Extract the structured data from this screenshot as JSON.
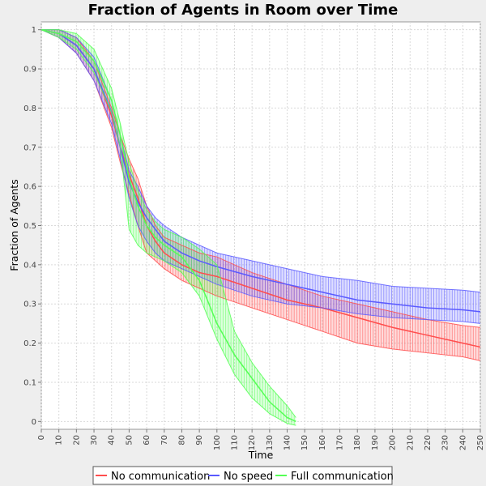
{
  "chart_data": {
    "type": "line",
    "title": "Fraction of Agents in Room over Time",
    "xlabel": "Time",
    "ylabel": "Fraction of Agents",
    "xlim": [
      0,
      250
    ],
    "ylim": [
      -0.02,
      1.02
    ],
    "grid": true,
    "legend_position": "bottom",
    "x_ticks": [
      0,
      10,
      20,
      30,
      40,
      50,
      60,
      70,
      80,
      90,
      100,
      110,
      120,
      130,
      140,
      150,
      160,
      170,
      180,
      190,
      200,
      210,
      220,
      230,
      240,
      250
    ],
    "y_ticks": [
      0,
      0.1,
      0.2,
      0.3,
      0.4,
      0.5,
      0.6,
      0.7,
      0.8,
      0.9,
      1
    ],
    "y_tick_labels": [
      "0",
      "0.1",
      "0.2",
      "0.3",
      "0.4",
      "0.5",
      "0.6",
      "0.7",
      "0.8",
      "0.9",
      "1"
    ],
    "series": [
      {
        "name": "No communication",
        "color": "#ff4d4d",
        "mean": {
          "x": [
            0,
            10,
            20,
            30,
            40,
            45,
            50,
            55,
            60,
            65,
            70,
            80,
            90,
            100,
            120,
            140,
            160,
            180,
            200,
            220,
            240,
            250
          ],
          "y": [
            1,
            0.99,
            0.96,
            0.9,
            0.78,
            0.7,
            0.63,
            0.57,
            0.5,
            0.46,
            0.43,
            0.4,
            0.38,
            0.37,
            0.34,
            0.31,
            0.29,
            0.265,
            0.24,
            0.22,
            0.2,
            0.19
          ]
        },
        "upper": {
          "x": [
            0,
            10,
            20,
            30,
            40,
            45,
            50,
            55,
            60,
            65,
            70,
            80,
            90,
            100,
            120,
            140,
            160,
            180,
            200,
            220,
            240,
            250
          ],
          "y": [
            1,
            1,
            0.98,
            0.92,
            0.8,
            0.73,
            0.67,
            0.62,
            0.55,
            0.5,
            0.47,
            0.45,
            0.43,
            0.42,
            0.38,
            0.35,
            0.32,
            0.3,
            0.28,
            0.26,
            0.245,
            0.24
          ]
        },
        "lower": {
          "x": [
            0,
            10,
            20,
            30,
            40,
            45,
            50,
            55,
            60,
            65,
            70,
            80,
            90,
            100,
            120,
            140,
            160,
            180,
            200,
            220,
            240,
            250
          ],
          "y": [
            1,
            0.98,
            0.94,
            0.87,
            0.75,
            0.66,
            0.58,
            0.5,
            0.43,
            0.41,
            0.39,
            0.36,
            0.34,
            0.32,
            0.29,
            0.26,
            0.23,
            0.2,
            0.185,
            0.175,
            0.165,
            0.155
          ]
        }
      },
      {
        "name": "No speed",
        "color": "#5a5aff",
        "mean": {
          "x": [
            0,
            10,
            20,
            30,
            40,
            45,
            50,
            55,
            60,
            65,
            70,
            80,
            90,
            100,
            120,
            140,
            160,
            180,
            200,
            220,
            240,
            250
          ],
          "y": [
            1,
            0.99,
            0.96,
            0.9,
            0.79,
            0.7,
            0.61,
            0.56,
            0.52,
            0.49,
            0.46,
            0.43,
            0.41,
            0.395,
            0.37,
            0.35,
            0.33,
            0.31,
            0.3,
            0.29,
            0.285,
            0.28
          ]
        },
        "upper": {
          "x": [
            0,
            10,
            20,
            30,
            40,
            45,
            50,
            55,
            60,
            65,
            70,
            80,
            90,
            100,
            120,
            140,
            160,
            180,
            200,
            220,
            240,
            250
          ],
          "y": [
            1,
            1,
            0.98,
            0.93,
            0.82,
            0.73,
            0.64,
            0.6,
            0.55,
            0.52,
            0.5,
            0.47,
            0.45,
            0.43,
            0.41,
            0.39,
            0.37,
            0.36,
            0.345,
            0.34,
            0.335,
            0.33
          ]
        },
        "lower": {
          "x": [
            0,
            10,
            20,
            30,
            40,
            45,
            50,
            55,
            60,
            65,
            70,
            80,
            90,
            100,
            120,
            140,
            160,
            180,
            200,
            220,
            240,
            250
          ],
          "y": [
            1,
            0.98,
            0.94,
            0.87,
            0.76,
            0.67,
            0.57,
            0.5,
            0.46,
            0.43,
            0.41,
            0.39,
            0.37,
            0.35,
            0.32,
            0.3,
            0.29,
            0.275,
            0.265,
            0.26,
            0.255,
            0.25
          ]
        }
      },
      {
        "name": "Full communication",
        "color": "#55ff55",
        "mean": {
          "x": [
            0,
            10,
            20,
            30,
            40,
            45,
            50,
            55,
            60,
            65,
            70,
            80,
            90,
            100,
            110,
            120,
            130,
            140,
            145
          ],
          "y": [
            1,
            0.99,
            0.97,
            0.92,
            0.82,
            0.73,
            0.62,
            0.55,
            0.5,
            0.47,
            0.45,
            0.42,
            0.36,
            0.25,
            0.17,
            0.11,
            0.05,
            0.01,
            0
          ]
        },
        "upper": {
          "x": [
            0,
            10,
            20,
            30,
            40,
            45,
            50,
            55,
            60,
            65,
            70,
            80,
            90,
            100,
            110,
            120,
            130,
            140,
            145
          ],
          "y": [
            1,
            1,
            0.99,
            0.95,
            0.85,
            0.76,
            0.66,
            0.59,
            0.54,
            0.51,
            0.49,
            0.47,
            0.44,
            0.4,
            0.23,
            0.15,
            0.09,
            0.04,
            0.01
          ]
        },
        "lower": {
          "x": [
            0,
            10,
            20,
            30,
            40,
            45,
            50,
            55,
            60,
            65,
            70,
            80,
            90,
            100,
            110,
            120,
            130,
            140,
            145
          ],
          "y": [
            1,
            0.98,
            0.95,
            0.89,
            0.79,
            0.7,
            0.49,
            0.45,
            0.43,
            0.42,
            0.41,
            0.38,
            0.32,
            0.21,
            0.12,
            0.06,
            0.02,
            -0.005,
            -0.01
          ]
        }
      }
    ]
  }
}
